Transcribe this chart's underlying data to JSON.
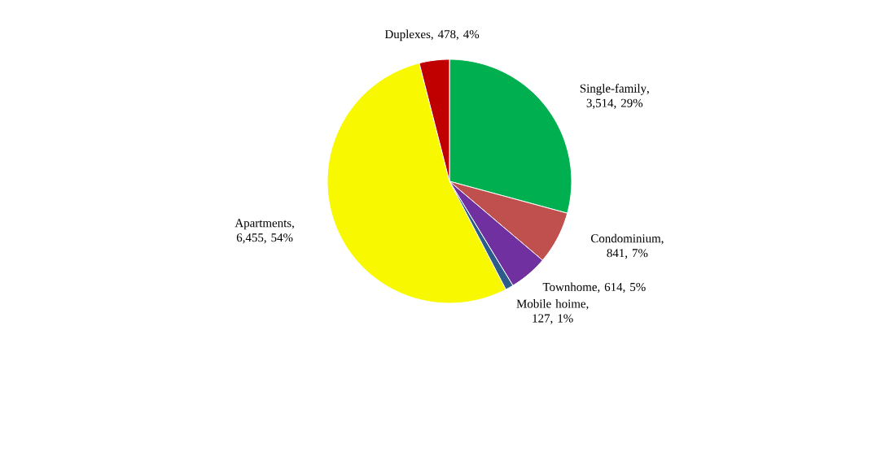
{
  "chart_data": {
    "type": "pie",
    "categories": [
      "Single-family",
      "Condominium",
      "Townhome",
      "Mobile hoime",
      "Apartments",
      "Duplexes"
    ],
    "values": [
      3514,
      841,
      614,
      127,
      6455,
      478
    ],
    "value_labels": [
      ", 3,514, 29%",
      ", 841, 7%",
      ", 614, 5%",
      ", 127, 1%",
      ", 6,455, 54%",
      ", 478, 4%"
    ],
    "colors": [
      "#00b050",
      "#c0504d",
      "#7030a0",
      "#2e5c8a",
      "#f8f800",
      "#c00000"
    ]
  }
}
